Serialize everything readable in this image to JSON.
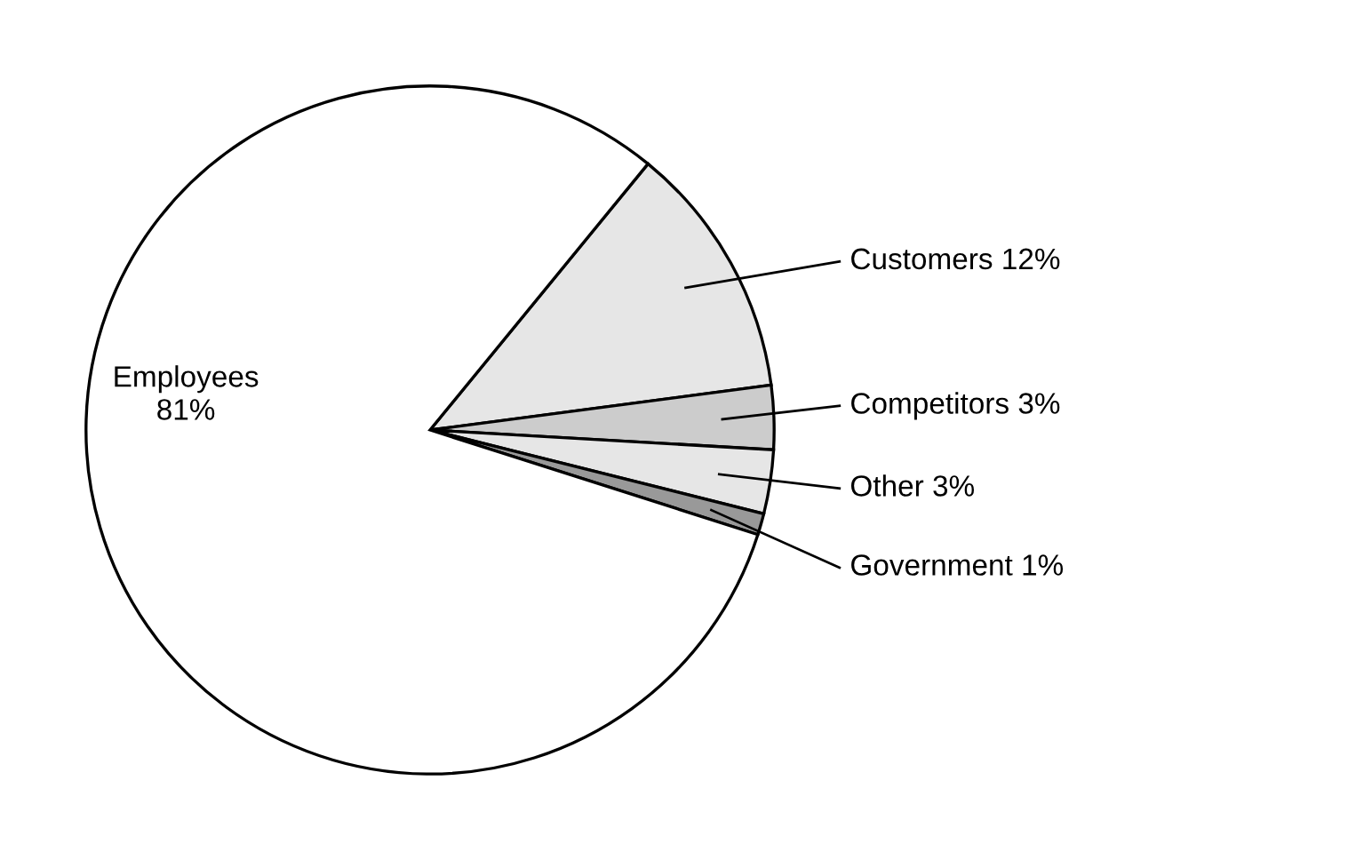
{
  "chart_data": {
    "type": "pie",
    "categories": [
      "Customers",
      "Competitors",
      "Other",
      "Government",
      "Employees"
    ],
    "values": [
      12,
      3,
      3,
      1,
      81
    ],
    "value_labels": [
      "12%",
      "3%",
      "3%",
      "1%",
      "81%"
    ],
    "colors": [
      "#e6e6e6",
      "#cccccc",
      "#e6e6e6",
      "#999999",
      "#ffffff"
    ]
  }
}
